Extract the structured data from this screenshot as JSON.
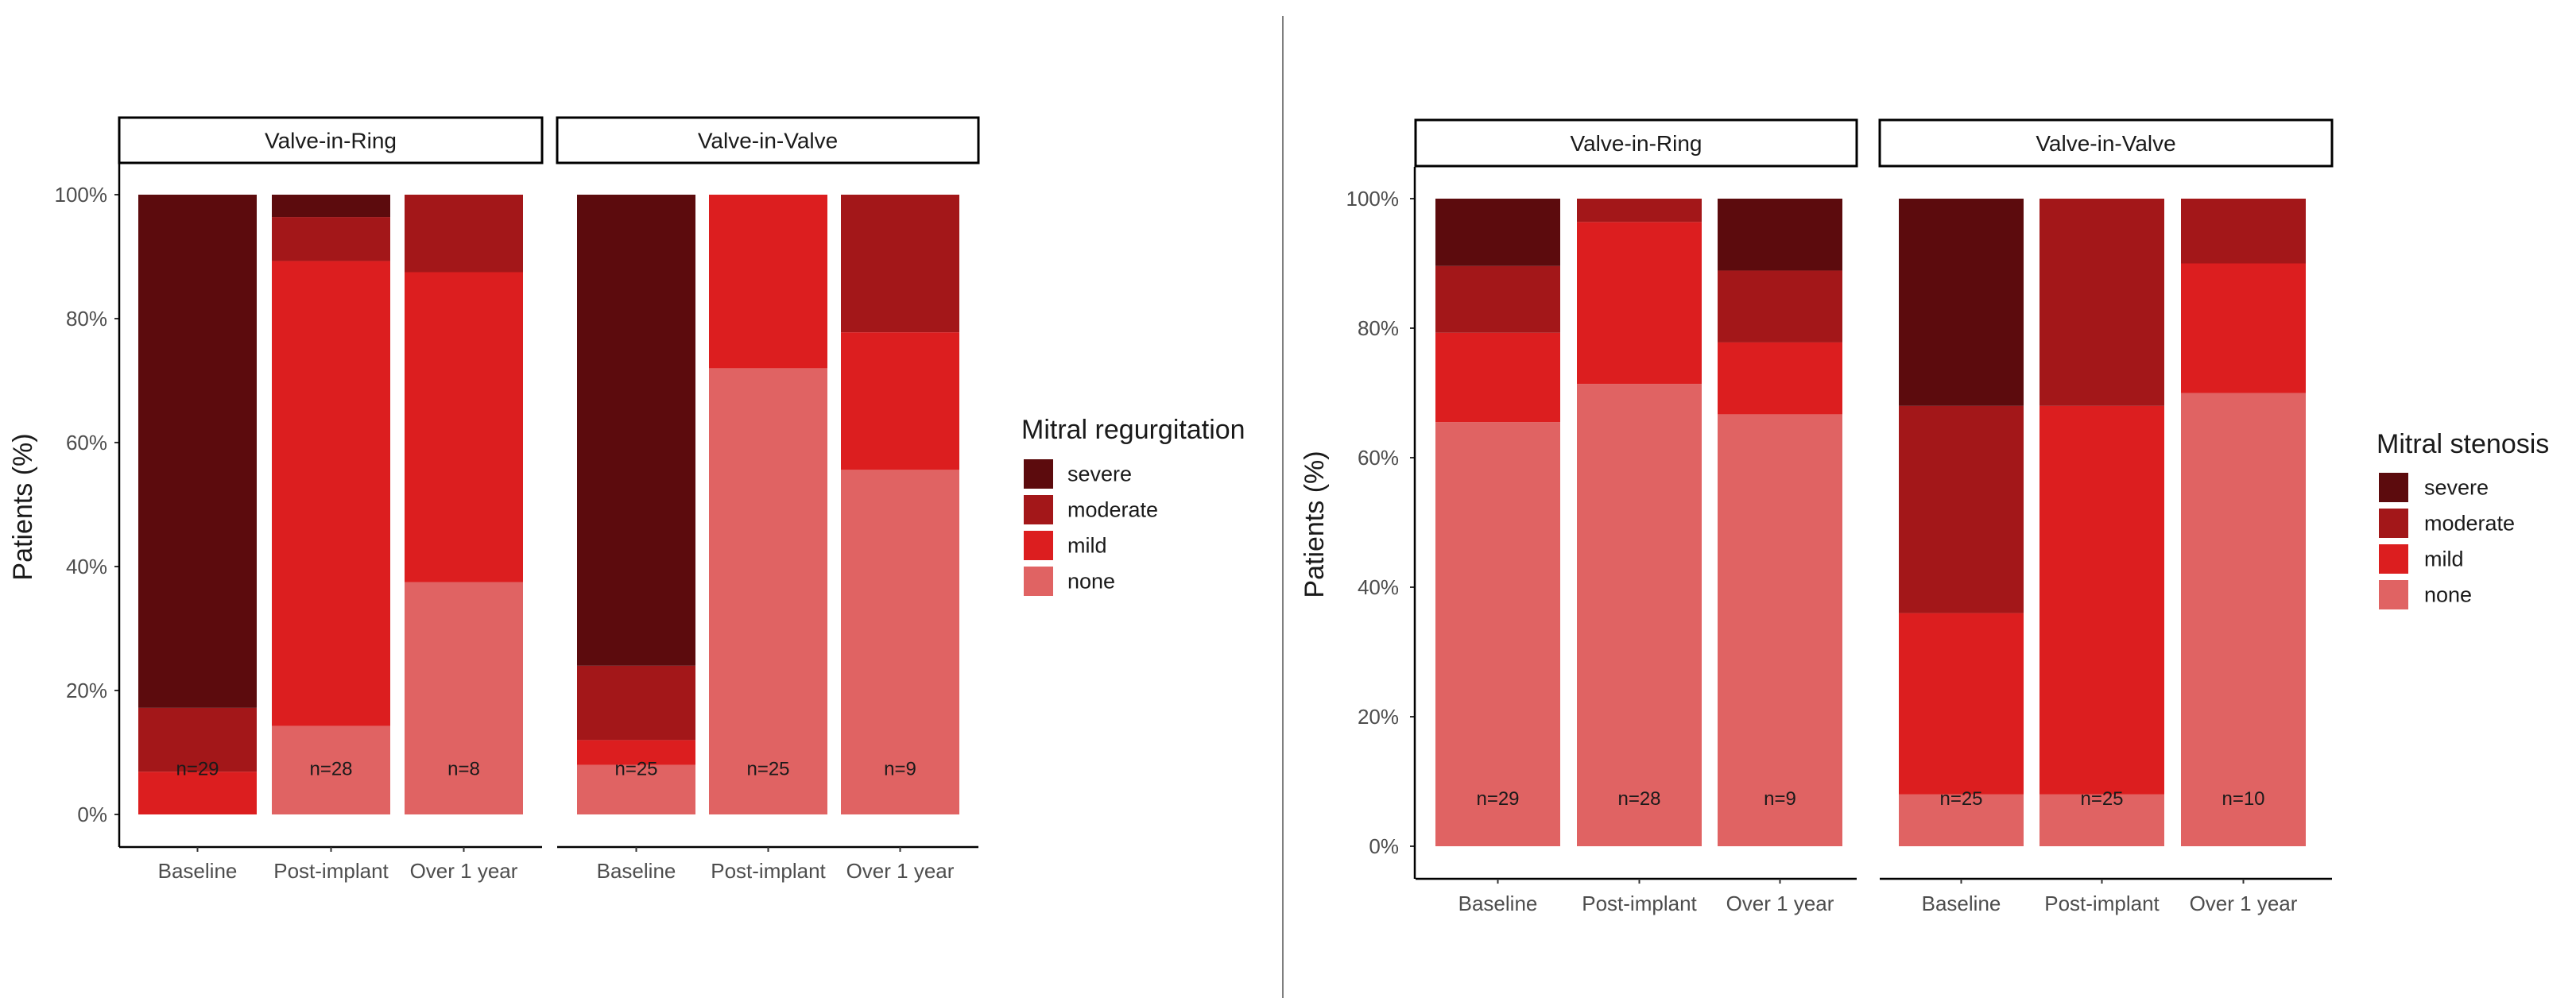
{
  "chart_data": [
    {
      "type": "bar",
      "stacked": true,
      "ylabel": "Patients (%)",
      "xlabel": "",
      "ylim": [
        0,
        100
      ],
      "yticks": [
        "0%",
        "20%",
        "40%",
        "60%",
        "80%",
        "100%"
      ],
      "legend_title": "Mitral regurgitation",
      "legend_position": "right",
      "categories": [
        "Baseline",
        "Post-implant",
        "Over 1 year"
      ],
      "stack_order": [
        "none",
        "mild",
        "moderate",
        "severe"
      ],
      "facets": [
        {
          "label": "Valve-in-Ring",
          "bars": [
            {
              "category": "Baseline",
              "n_label": "n=29",
              "values": {
                "none": 0,
                "mild": 6.9,
                "moderate": 10.3,
                "severe": 82.8
              }
            },
            {
              "category": "Post-implant",
              "n_label": "n=28",
              "values": {
                "none": 14.3,
                "mild": 75.0,
                "moderate": 7.1,
                "severe": 3.6
              }
            },
            {
              "category": "Over 1 year",
              "n_label": "n=8",
              "values": {
                "none": 37.5,
                "mild": 50.0,
                "moderate": 12.5,
                "severe": 0
              }
            }
          ]
        },
        {
          "label": "Valve-in-Valve",
          "bars": [
            {
              "category": "Baseline",
              "n_label": "n=25",
              "values": {
                "none": 8.0,
                "mild": 4.0,
                "moderate": 12.0,
                "severe": 76.0
              }
            },
            {
              "category": "Post-implant",
              "n_label": "n=25",
              "values": {
                "none": 72.0,
                "mild": 28.0,
                "moderate": 0,
                "severe": 0
              }
            },
            {
              "category": "Over 1 year",
              "n_label": "n=9",
              "values": {
                "none": 55.6,
                "mild": 22.2,
                "moderate": 22.2,
                "severe": 0
              }
            }
          ]
        }
      ]
    },
    {
      "type": "bar",
      "stacked": true,
      "ylabel": "Patients (%)",
      "xlabel": "",
      "ylim": [
        0,
        100
      ],
      "yticks": [
        "0%",
        "20%",
        "40%",
        "60%",
        "80%",
        "100%"
      ],
      "legend_title": "Mitral stenosis",
      "legend_position": "right",
      "categories": [
        "Baseline",
        "Post-implant",
        "Over 1 year"
      ],
      "stack_order": [
        "none",
        "mild",
        "moderate",
        "severe"
      ],
      "facets": [
        {
          "label": "Valve-in-Ring",
          "bars": [
            {
              "category": "Baseline",
              "n_label": "n=29",
              "values": {
                "none": 65.5,
                "mild": 13.8,
                "moderate": 10.3,
                "severe": 10.4
              }
            },
            {
              "category": "Post-implant",
              "n_label": "n=28",
              "values": {
                "none": 71.4,
                "mild": 25.0,
                "moderate": 3.6,
                "severe": 0
              }
            },
            {
              "category": "Over 1 year",
              "n_label": "n=9",
              "values": {
                "none": 66.7,
                "mild": 11.1,
                "moderate": 11.1,
                "severe": 11.1
              }
            }
          ]
        },
        {
          "label": "Valve-in-Valve",
          "bars": [
            {
              "category": "Baseline",
              "n_label": "n=25",
              "values": {
                "none": 8.0,
                "mild": 28.0,
                "moderate": 32.0,
                "severe": 32.0
              }
            },
            {
              "category": "Post-implant",
              "n_label": "n=25",
              "values": {
                "none": 8.0,
                "mild": 60.0,
                "moderate": 32.0,
                "severe": 0
              }
            },
            {
              "category": "Over 1 year",
              "n_label": "n=10",
              "values": {
                "none": 70.0,
                "mild": 20.0,
                "moderate": 10.0,
                "severe": 0
              }
            }
          ]
        }
      ]
    }
  ],
  "legend_items": [
    {
      "key": "severe",
      "label": "severe"
    },
    {
      "key": "moderate",
      "label": "moderate"
    },
    {
      "key": "mild",
      "label": "mild"
    },
    {
      "key": "none",
      "label": "none"
    }
  ],
  "colors": {
    "severe": "#5c0b0d",
    "moderate": "#a31719",
    "mild": "#dc1e1f",
    "none": "#e06363",
    "divider": "#7f7f7f",
    "axis": "#000000"
  }
}
